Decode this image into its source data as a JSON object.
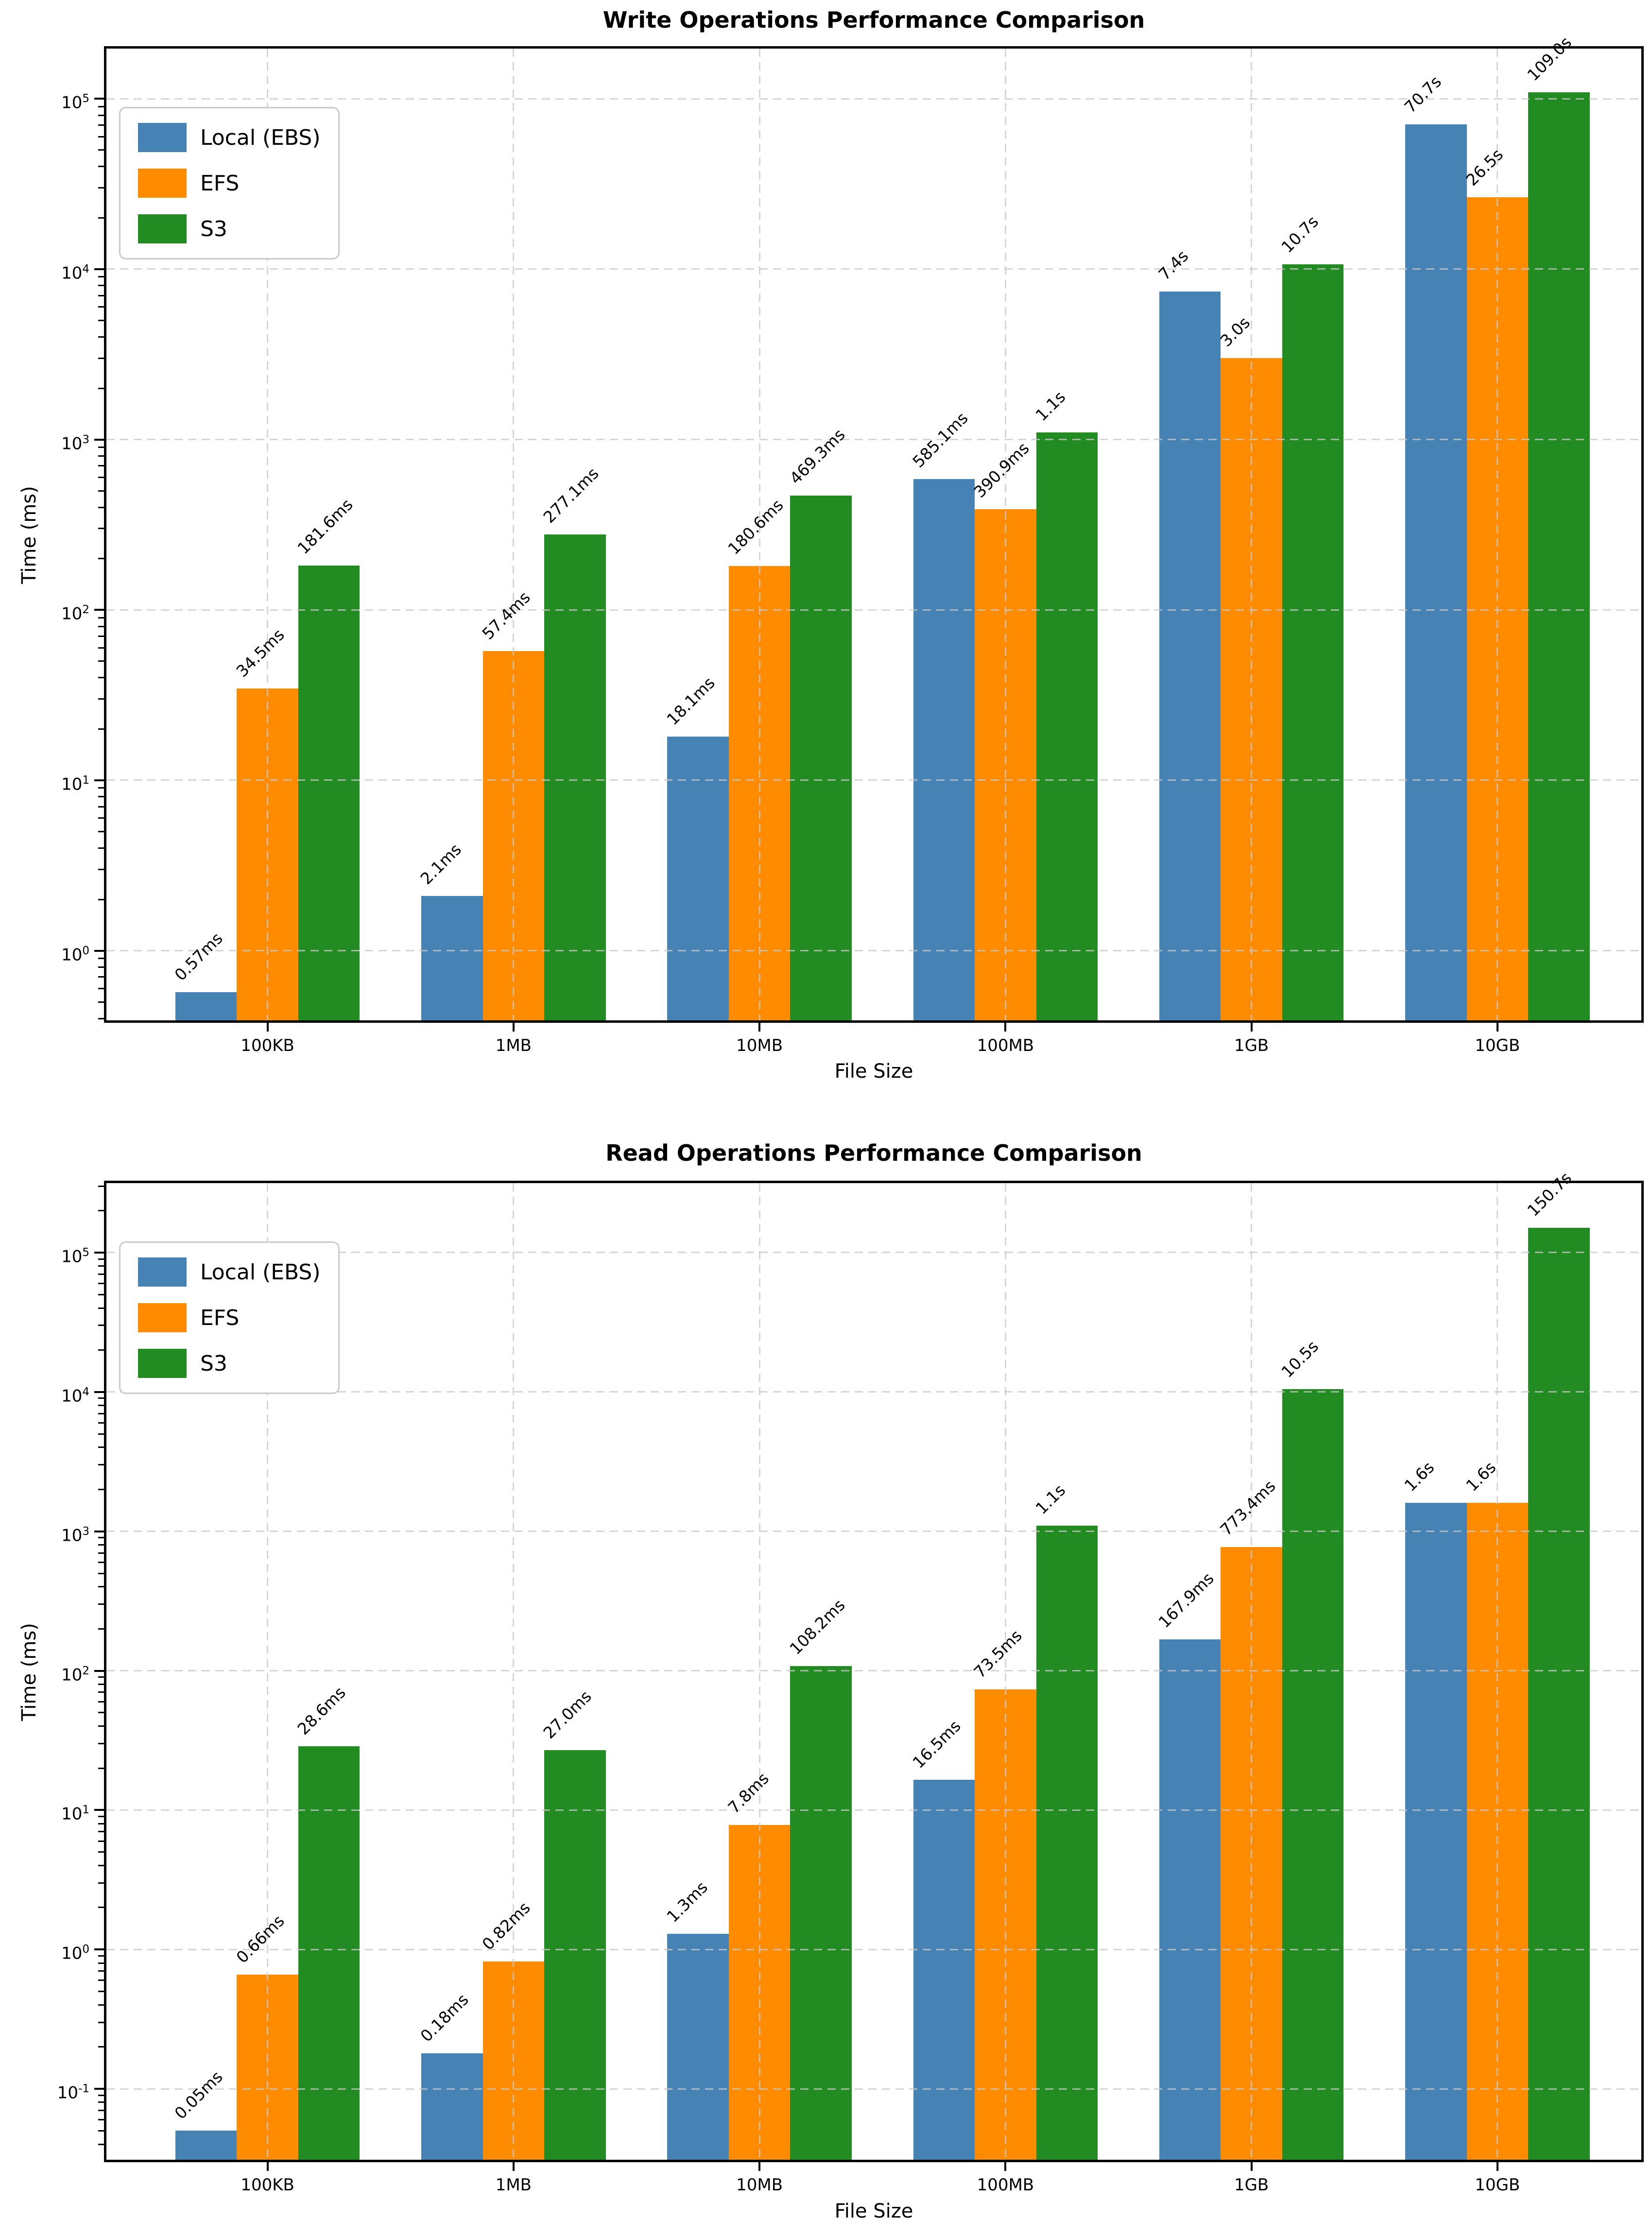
{
  "figure": {
    "background": "#ffffff"
  },
  "chart_data": [
    {
      "type": "bar",
      "yscale": "log",
      "title": "Write Operations Performance Comparison",
      "xlabel": "File Size",
      "ylabel": "Time (ms)",
      "categories": [
        "100KB",
        "1MB",
        "10MB",
        "100MB",
        "1GB",
        "10GB"
      ],
      "series": [
        {
          "name": "Local (EBS)",
          "color": "#4682B4",
          "values_ms": [
            0.57,
            2.1,
            18.1,
            585.1,
            7400,
            70700
          ],
          "labels": [
            "0.57ms",
            "2.1ms",
            "18.1ms",
            "585.1ms",
            "7.4s",
            "70.7s"
          ]
        },
        {
          "name": "EFS",
          "color": "#FF8C00",
          "values_ms": [
            34.5,
            57.4,
            180.6,
            390.9,
            3000,
            26500
          ],
          "labels": [
            "34.5ms",
            "57.4ms",
            "180.6ms",
            "390.9ms",
            "3.0s",
            "26.5s"
          ]
        },
        {
          "name": "S3",
          "color": "#228B22",
          "values_ms": [
            181.6,
            277.1,
            469.3,
            1100,
            10700,
            109000
          ],
          "labels": [
            "181.6ms",
            "277.1ms",
            "469.3ms",
            "1.1s",
            "10.7s",
            "109.0s"
          ]
        }
      ],
      "ylim_ms": [
        0.39,
        197000
      ],
      "ytick_exponents": [
        0,
        1,
        2,
        3,
        4,
        5
      ],
      "legend": {
        "position": "upper left",
        "entries": [
          "Local (EBS)",
          "EFS",
          "S3"
        ]
      },
      "grid": "dashed"
    },
    {
      "type": "bar",
      "yscale": "log",
      "title": "Read Operations Performance Comparison",
      "xlabel": "File Size",
      "ylabel": "Time (ms)",
      "categories": [
        "100KB",
        "1MB",
        "10MB",
        "100MB",
        "1GB",
        "10GB"
      ],
      "series": [
        {
          "name": "Local (EBS)",
          "color": "#4682B4",
          "values_ms": [
            0.05,
            0.18,
            1.3,
            16.5,
            167.9,
            1600
          ],
          "labels": [
            "0.05ms",
            "0.18ms",
            "1.3ms",
            "16.5ms",
            "167.9ms",
            "1.6s"
          ]
        },
        {
          "name": "EFS",
          "color": "#FF8C00",
          "values_ms": [
            0.66,
            0.82,
            7.8,
            73.5,
            773.4,
            1600
          ],
          "labels": [
            "0.66ms",
            "0.82ms",
            "7.8ms",
            "73.5ms",
            "773.4ms",
            "1.6s"
          ]
        },
        {
          "name": "S3",
          "color": "#228B22",
          "values_ms": [
            28.6,
            27.0,
            108.2,
            1100,
            10500,
            150700
          ],
          "labels": [
            "28.6ms",
            "27.0ms",
            "108.2ms",
            "1.1s",
            "10.5s",
            "150.7s"
          ]
        }
      ],
      "ylim_ms": [
        0.031,
        315000
      ],
      "ytick_exponents": [
        -1,
        0,
        1,
        2,
        3,
        4,
        5
      ],
      "legend": {
        "position": "upper left",
        "entries": [
          "Local (EBS)",
          "EFS",
          "S3"
        ]
      },
      "grid": "dashed"
    }
  ]
}
